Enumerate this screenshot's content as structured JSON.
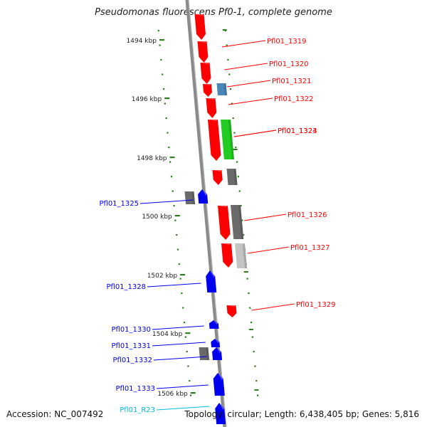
{
  "title": "Pseudomonas fluorescens Pf0-1, complete genome",
  "accession": "Accession: NC_007492",
  "topology": "Topology: circular; Length: 6,438,405 bp; Genes: 5,816",
  "colors": {
    "forward_gene": "#ff0000",
    "reverse_gene": "#0000ee",
    "rna_label": "#00bbdd",
    "green_feature": "#22cc22",
    "steelblue_feature": "#4a86b8",
    "dark_gray_feature": "#6a6a6a",
    "light_gray_feature": "#c4c4c4",
    "tick": "#2e7d1e",
    "backbone": "#8a8a8a"
  },
  "ticks": [
    "1494 kbp",
    "1496 kbp",
    "1498 kbp",
    "1500 kbp",
    "1502 kbp",
    "1504 kbp",
    "1506 kbp"
  ],
  "genes": [
    {
      "label": "Pfl01_1319",
      "strand": "+",
      "color": "red"
    },
    {
      "label": "Pfl01_1320",
      "strand": "+",
      "color": "red"
    },
    {
      "label": "Pfl01_1321",
      "strand": "+",
      "color": "red"
    },
    {
      "label": "Pfl01_1322",
      "strand": "+",
      "color": "red"
    },
    {
      "label": "Pfl01_1323",
      "strand": "+",
      "color": "red"
    },
    {
      "label": "Pfl01_1324",
      "strand": "+",
      "color": "red"
    },
    {
      "label": "Pfl01_1325",
      "strand": "-",
      "color": "blue"
    },
    {
      "label": "Pfl01_1326",
      "strand": "+",
      "color": "red"
    },
    {
      "label": "Pfl01_1327",
      "strand": "+",
      "color": "red"
    },
    {
      "label": "Pfl01_1328",
      "strand": "-",
      "color": "blue"
    },
    {
      "label": "Pfl01_1329",
      "strand": "+",
      "color": "red"
    },
    {
      "label": "Pfl01_1330",
      "strand": "-",
      "color": "blue"
    },
    {
      "label": "Pfl01_1331",
      "strand": "-",
      "color": "blue"
    },
    {
      "label": "Pfl01_1332",
      "strand": "-",
      "color": "blue"
    },
    {
      "label": "Pfl01_1333",
      "strand": "-",
      "color": "blue"
    },
    {
      "label": "Pfl01_R23",
      "strand": "-",
      "color": "cyan"
    }
  ]
}
